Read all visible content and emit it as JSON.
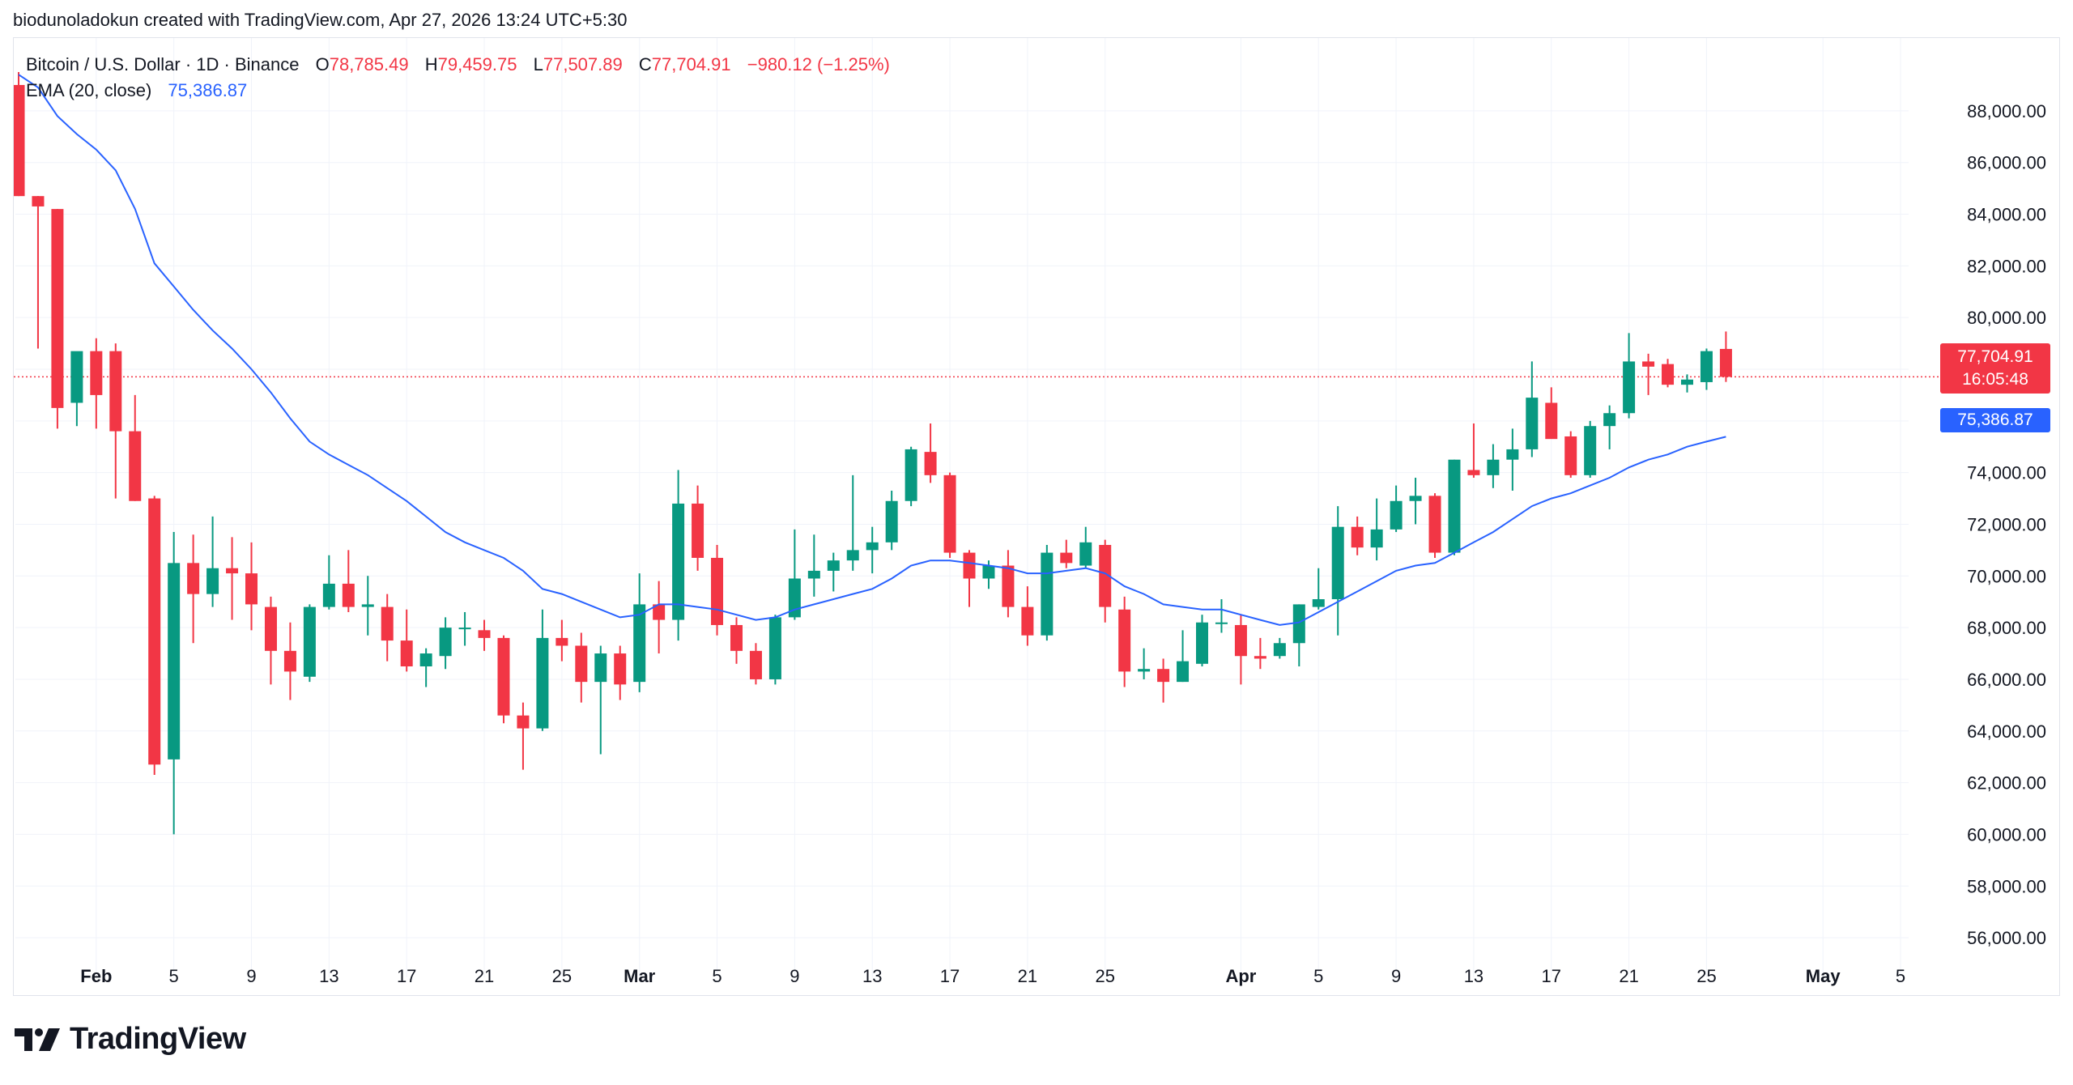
{
  "header": {
    "credit": "biodunoladokun created with TradingView.com, Apr 27, 2026 13:24 UTC+5:30"
  },
  "legend": {
    "symbol": "Bitcoin / U.S. Dollar · 1D · Binance",
    "open_label": "O",
    "open": "78,785.49",
    "high_label": "H",
    "high": "79,459.75",
    "low_label": "L",
    "low": "77,507.89",
    "close_label": "C",
    "close": "77,704.91",
    "change": "−980.12 (−1.25%)",
    "ema_label": "EMA (20, close)",
    "ema_value": "75,386.87"
  },
  "price_tags": {
    "last_price": "77,704.91",
    "countdown": "16:05:48",
    "ema": "75,386.87"
  },
  "footer": {
    "brand": "TradingView",
    "logo_icon": "tradingview-logo-icon"
  },
  "colors": {
    "up": "#089981",
    "down": "#f23645",
    "ema": "#2962ff",
    "grid": "#f0f3fa",
    "axis_text": "#131722"
  },
  "chart_data": {
    "type": "candlestick",
    "timeframe": "1D",
    "ylim": [
      55000,
      89500
    ],
    "y_ticks": [
      56000,
      58000,
      60000,
      62000,
      64000,
      66000,
      68000,
      70000,
      72000,
      74000,
      76000,
      78000,
      80000,
      82000,
      84000,
      86000,
      88000
    ],
    "y_tick_labels": [
      "56,000.00",
      "58,000.00",
      "60,000.00",
      "62,000.00",
      "64,000.00",
      "66,000.00",
      "68,000.00",
      "70,000.00",
      "72,000.00",
      "74,000.00",
      "76,000.00",
      "78,000.00",
      "80,000.00",
      "82,000.00",
      "84,000.00",
      "86,000.00",
      "88,000.00"
    ],
    "x_range": [
      "2026-01-28",
      "2026-05-06"
    ],
    "x_ticks": [
      {
        "date": "2026-02-01",
        "label": "Feb"
      },
      {
        "date": "2026-02-05",
        "label": "5"
      },
      {
        "date": "2026-02-09",
        "label": "9"
      },
      {
        "date": "2026-02-13",
        "label": "13"
      },
      {
        "date": "2026-02-17",
        "label": "17"
      },
      {
        "date": "2026-02-21",
        "label": "21"
      },
      {
        "date": "2026-02-25",
        "label": "25"
      },
      {
        "date": "2026-03-01",
        "label": "Mar"
      },
      {
        "date": "2026-03-05",
        "label": "5"
      },
      {
        "date": "2026-03-09",
        "label": "9"
      },
      {
        "date": "2026-03-13",
        "label": "13"
      },
      {
        "date": "2026-03-17",
        "label": "17"
      },
      {
        "date": "2026-03-21",
        "label": "21"
      },
      {
        "date": "2026-03-25",
        "label": "25"
      },
      {
        "date": "2026-04-01",
        "label": "Apr"
      },
      {
        "date": "2026-04-05",
        "label": "5"
      },
      {
        "date": "2026-04-09",
        "label": "9"
      },
      {
        "date": "2026-04-13",
        "label": "13"
      },
      {
        "date": "2026-04-17",
        "label": "17"
      },
      {
        "date": "2026-04-21",
        "label": "21"
      },
      {
        "date": "2026-04-25",
        "label": "25"
      },
      {
        "date": "2026-05-01",
        "label": "May"
      },
      {
        "date": "2026-05-05",
        "label": "5"
      }
    ],
    "last_price_line": 77704.91,
    "candles": [
      {
        "d": "2026-01-28",
        "o": 89000,
        "h": 89500,
        "l": 84700,
        "c": 84700
      },
      {
        "d": "2026-01-29",
        "o": 84700,
        "h": 84700,
        "l": 78800,
        "c": 84300
      },
      {
        "d": "2026-01-30",
        "o": 84200,
        "h": 84200,
        "l": 75700,
        "c": 76500
      },
      {
        "d": "2026-01-31",
        "o": 76700,
        "h": 78500,
        "l": 75800,
        "c": 78700
      },
      {
        "d": "2026-02-01",
        "o": 78700,
        "h": 79200,
        "l": 75700,
        "c": 77000
      },
      {
        "d": "2026-02-02",
        "o": 78700,
        "h": 79000,
        "l": 73000,
        "c": 75600
      },
      {
        "d": "2026-02-03",
        "o": 75600,
        "h": 77000,
        "l": 72900,
        "c": 72900
      },
      {
        "d": "2026-02-04",
        "o": 73000,
        "h": 73100,
        "l": 62300,
        "c": 62700
      },
      {
        "d": "2026-02-05",
        "o": 62900,
        "h": 71700,
        "l": 60000,
        "c": 70500
      },
      {
        "d": "2026-02-06",
        "o": 70500,
        "h": 71600,
        "l": 67400,
        "c": 69300
      },
      {
        "d": "2026-02-07",
        "o": 69300,
        "h": 72300,
        "l": 68800,
        "c": 70300
      },
      {
        "d": "2026-02-08",
        "o": 70300,
        "h": 71500,
        "l": 68300,
        "c": 70100
      },
      {
        "d": "2026-02-09",
        "o": 70100,
        "h": 71300,
        "l": 67900,
        "c": 68900
      },
      {
        "d": "2026-02-10",
        "o": 68800,
        "h": 69200,
        "l": 65800,
        "c": 67100
      },
      {
        "d": "2026-02-11",
        "o": 67100,
        "h": 68200,
        "l": 65200,
        "c": 66300
      },
      {
        "d": "2026-02-12",
        "o": 66100,
        "h": 68900,
        "l": 65900,
        "c": 68800
      },
      {
        "d": "2026-02-13",
        "o": 68800,
        "h": 70800,
        "l": 68700,
        "c": 69700
      },
      {
        "d": "2026-02-14",
        "o": 69700,
        "h": 71000,
        "l": 68600,
        "c": 68800
      },
      {
        "d": "2026-02-15",
        "o": 68800,
        "h": 70000,
        "l": 67700,
        "c": 68900
      },
      {
        "d": "2026-02-16",
        "o": 68800,
        "h": 69300,
        "l": 66700,
        "c": 67500
      },
      {
        "d": "2026-02-17",
        "o": 67500,
        "h": 68700,
        "l": 66300,
        "c": 66500
      },
      {
        "d": "2026-02-18",
        "o": 66500,
        "h": 67200,
        "l": 65700,
        "c": 67000
      },
      {
        "d": "2026-02-19",
        "o": 66900,
        "h": 68400,
        "l": 66400,
        "c": 68000
      },
      {
        "d": "2026-02-20",
        "o": 68000,
        "h": 68600,
        "l": 67300,
        "c": 68000
      },
      {
        "d": "2026-02-21",
        "o": 67900,
        "h": 68300,
        "l": 67100,
        "c": 67600
      },
      {
        "d": "2026-02-22",
        "o": 67600,
        "h": 67700,
        "l": 64300,
        "c": 64600
      },
      {
        "d": "2026-02-23",
        "o": 64600,
        "h": 65100,
        "l": 62500,
        "c": 64100
      },
      {
        "d": "2026-02-24",
        "o": 64100,
        "h": 68700,
        "l": 64000,
        "c": 67600
      },
      {
        "d": "2026-02-25",
        "o": 67600,
        "h": 68300,
        "l": 66700,
        "c": 67300
      },
      {
        "d": "2026-02-26",
        "o": 67300,
        "h": 67800,
        "l": 65100,
        "c": 65900
      },
      {
        "d": "2026-02-27",
        "o": 65900,
        "h": 67300,
        "l": 63100,
        "c": 67000
      },
      {
        "d": "2026-02-28",
        "o": 67000,
        "h": 67300,
        "l": 65200,
        "c": 65800
      },
      {
        "d": "2026-03-01",
        "o": 65900,
        "h": 70100,
        "l": 65500,
        "c": 68900
      },
      {
        "d": "2026-03-02",
        "o": 68900,
        "h": 69800,
        "l": 67000,
        "c": 68300
      },
      {
        "d": "2026-03-03",
        "o": 68300,
        "h": 74100,
        "l": 67500,
        "c": 72800
      },
      {
        "d": "2026-03-04",
        "o": 72800,
        "h": 73500,
        "l": 70200,
        "c": 70700
      },
      {
        "d": "2026-03-05",
        "o": 70700,
        "h": 71200,
        "l": 67700,
        "c": 68100
      },
      {
        "d": "2026-03-06",
        "o": 68100,
        "h": 68400,
        "l": 66600,
        "c": 67100
      },
      {
        "d": "2026-03-07",
        "o": 67100,
        "h": 67400,
        "l": 65800,
        "c": 66000
      },
      {
        "d": "2026-03-08",
        "o": 66000,
        "h": 68500,
        "l": 65800,
        "c": 68400
      },
      {
        "d": "2026-03-09",
        "o": 68400,
        "h": 71800,
        "l": 68300,
        "c": 69900
      },
      {
        "d": "2026-03-10",
        "o": 69900,
        "h": 71600,
        "l": 69200,
        "c": 70200
      },
      {
        "d": "2026-03-11",
        "o": 70200,
        "h": 70900,
        "l": 69400,
        "c": 70600
      },
      {
        "d": "2026-03-12",
        "o": 70600,
        "h": 73900,
        "l": 70200,
        "c": 71000
      },
      {
        "d": "2026-03-13",
        "o": 71000,
        "h": 71900,
        "l": 70100,
        "c": 71300
      },
      {
        "d": "2026-03-14",
        "o": 71300,
        "h": 73300,
        "l": 71000,
        "c": 72900
      },
      {
        "d": "2026-03-15",
        "o": 72900,
        "h": 75000,
        "l": 72700,
        "c": 74900
      },
      {
        "d": "2026-03-16",
        "o": 74800,
        "h": 75900,
        "l": 73600,
        "c": 73900
      },
      {
        "d": "2026-03-17",
        "o": 73900,
        "h": 74000,
        "l": 70700,
        "c": 70900
      },
      {
        "d": "2026-03-18",
        "o": 70900,
        "h": 71000,
        "l": 68800,
        "c": 69900
      },
      {
        "d": "2026-03-19",
        "o": 69900,
        "h": 70600,
        "l": 69500,
        "c": 70400
      },
      {
        "d": "2026-03-20",
        "o": 70400,
        "h": 71000,
        "l": 68400,
        "c": 68800
      },
      {
        "d": "2026-03-21",
        "o": 68800,
        "h": 69600,
        "l": 67300,
        "c": 67700
      },
      {
        "d": "2026-03-22",
        "o": 67700,
        "h": 71200,
        "l": 67500,
        "c": 70900
      },
      {
        "d": "2026-03-23",
        "o": 70900,
        "h": 71400,
        "l": 70300,
        "c": 70500
      },
      {
        "d": "2026-03-24",
        "o": 70400,
        "h": 71900,
        "l": 70300,
        "c": 71300
      },
      {
        "d": "2026-03-25",
        "o": 71200,
        "h": 71400,
        "l": 68200,
        "c": 68800
      },
      {
        "d": "2026-03-26",
        "o": 68700,
        "h": 69200,
        "l": 65700,
        "c": 66300
      },
      {
        "d": "2026-03-27",
        "o": 66300,
        "h": 67200,
        "l": 66000,
        "c": 66400
      },
      {
        "d": "2026-03-28",
        "o": 66400,
        "h": 66800,
        "l": 65100,
        "c": 65900
      },
      {
        "d": "2026-03-29",
        "o": 65900,
        "h": 67900,
        "l": 65900,
        "c": 66700
      },
      {
        "d": "2026-03-30",
        "o": 66600,
        "h": 68500,
        "l": 66500,
        "c": 68200
      },
      {
        "d": "2026-03-31",
        "o": 68200,
        "h": 69100,
        "l": 67800,
        "c": 68200
      },
      {
        "d": "2026-04-01",
        "o": 68100,
        "h": 68500,
        "l": 65800,
        "c": 66900
      },
      {
        "d": "2026-04-02",
        "o": 66900,
        "h": 67600,
        "l": 66400,
        "c": 66800
      },
      {
        "d": "2026-04-03",
        "o": 66900,
        "h": 67600,
        "l": 66800,
        "c": 67400
      },
      {
        "d": "2026-04-04",
        "o": 67400,
        "h": 68900,
        "l": 66500,
        "c": 68900
      },
      {
        "d": "2026-04-05",
        "o": 68800,
        "h": 70300,
        "l": 68700,
        "c": 69100
      },
      {
        "d": "2026-04-06",
        "o": 69100,
        "h": 72700,
        "l": 67700,
        "c": 71900
      },
      {
        "d": "2026-04-07",
        "o": 71900,
        "h": 72300,
        "l": 70800,
        "c": 71100
      },
      {
        "d": "2026-04-08",
        "o": 71100,
        "h": 73000,
        "l": 70600,
        "c": 71800
      },
      {
        "d": "2026-04-09",
        "o": 71800,
        "h": 73500,
        "l": 71700,
        "c": 72900
      },
      {
        "d": "2026-04-10",
        "o": 72900,
        "h": 73800,
        "l": 72000,
        "c": 73100
      },
      {
        "d": "2026-04-11",
        "o": 73100,
        "h": 73200,
        "l": 70700,
        "c": 70900
      },
      {
        "d": "2026-04-12",
        "o": 70900,
        "h": 74500,
        "l": 70800,
        "c": 74500
      },
      {
        "d": "2026-04-13",
        "o": 74100,
        "h": 75900,
        "l": 73800,
        "c": 73900
      },
      {
        "d": "2026-04-14",
        "o": 73900,
        "h": 75100,
        "l": 73400,
        "c": 74500
      },
      {
        "d": "2026-04-15",
        "o": 74500,
        "h": 75700,
        "l": 73300,
        "c": 74900
      },
      {
        "d": "2026-04-16",
        "o": 74900,
        "h": 78300,
        "l": 74600,
        "c": 76900
      },
      {
        "d": "2026-04-17",
        "o": 76700,
        "h": 77300,
        "l": 75400,
        "c": 75300
      },
      {
        "d": "2026-04-18",
        "o": 75400,
        "h": 75600,
        "l": 73800,
        "c": 73900
      },
      {
        "d": "2026-04-19",
        "o": 73900,
        "h": 76000,
        "l": 73800,
        "c": 75800
      },
      {
        "d": "2026-04-20",
        "o": 75800,
        "h": 76600,
        "l": 74900,
        "c": 76300
      },
      {
        "d": "2026-04-21",
        "o": 76300,
        "h": 79400,
        "l": 76100,
        "c": 78300
      },
      {
        "d": "2026-04-22",
        "o": 78300,
        "h": 78600,
        "l": 77000,
        "c": 78100
      },
      {
        "d": "2026-04-23",
        "o": 78200,
        "h": 78400,
        "l": 77300,
        "c": 77400
      },
      {
        "d": "2026-04-24",
        "o": 77400,
        "h": 77800,
        "l": 77100,
        "c": 77600
      },
      {
        "d": "2026-04-25",
        "o": 77500,
        "h": 78800,
        "l": 77200,
        "c": 78700
      },
      {
        "d": "2026-04-26",
        "o": 78785.49,
        "h": 79459.75,
        "l": 77507.89,
        "c": 77704.91
      }
    ],
    "ema": {
      "name": "EMA (20, close)",
      "points": [
        [
          "2026-01-28",
          89400
        ],
        [
          "2026-01-29",
          88900
        ],
        [
          "2026-01-30",
          87800
        ],
        [
          "2026-01-31",
          87100
        ],
        [
          "2026-02-01",
          86500
        ],
        [
          "2026-02-02",
          85700
        ],
        [
          "2026-02-03",
          84200
        ],
        [
          "2026-02-04",
          82100
        ],
        [
          "2026-02-05",
          81200
        ],
        [
          "2026-02-06",
          80300
        ],
        [
          "2026-02-07",
          79500
        ],
        [
          "2026-02-08",
          78800
        ],
        [
          "2026-02-09",
          78000
        ],
        [
          "2026-02-10",
          77100
        ],
        [
          "2026-02-11",
          76100
        ],
        [
          "2026-02-12",
          75200
        ],
        [
          "2026-02-13",
          74700
        ],
        [
          "2026-02-14",
          74300
        ],
        [
          "2026-02-15",
          73900
        ],
        [
          "2026-02-16",
          73400
        ],
        [
          "2026-02-17",
          72900
        ],
        [
          "2026-02-18",
          72300
        ],
        [
          "2026-02-19",
          71700
        ],
        [
          "2026-02-20",
          71300
        ],
        [
          "2026-02-21",
          71000
        ],
        [
          "2026-02-22",
          70700
        ],
        [
          "2026-02-23",
          70200
        ],
        [
          "2026-02-24",
          69500
        ],
        [
          "2026-02-25",
          69300
        ],
        [
          "2026-02-26",
          69000
        ],
        [
          "2026-02-27",
          68700
        ],
        [
          "2026-02-28",
          68400
        ],
        [
          "2026-03-01",
          68500
        ],
        [
          "2026-03-02",
          68900
        ],
        [
          "2026-03-03",
          68900
        ],
        [
          "2026-03-04",
          68800
        ],
        [
          "2026-03-05",
          68700
        ],
        [
          "2026-03-06",
          68500
        ],
        [
          "2026-03-07",
          68300
        ],
        [
          "2026-03-08",
          68400
        ],
        [
          "2026-03-09",
          68700
        ],
        [
          "2026-03-10",
          68900
        ],
        [
          "2026-03-11",
          69100
        ],
        [
          "2026-03-12",
          69300
        ],
        [
          "2026-03-13",
          69500
        ],
        [
          "2026-03-14",
          69900
        ],
        [
          "2026-03-15",
          70400
        ],
        [
          "2026-03-16",
          70600
        ],
        [
          "2026-03-17",
          70600
        ],
        [
          "2026-03-18",
          70500
        ],
        [
          "2026-03-19",
          70400
        ],
        [
          "2026-03-20",
          70300
        ],
        [
          "2026-03-21",
          70100
        ],
        [
          "2026-03-22",
          70100
        ],
        [
          "2026-03-23",
          70200
        ],
        [
          "2026-03-24",
          70300
        ],
        [
          "2026-03-25",
          70100
        ],
        [
          "2026-03-26",
          69600
        ],
        [
          "2026-03-27",
          69300
        ],
        [
          "2026-03-28",
          68900
        ],
        [
          "2026-03-29",
          68800
        ],
        [
          "2026-03-30",
          68700
        ],
        [
          "2026-03-31",
          68700
        ],
        [
          "2026-04-01",
          68500
        ],
        [
          "2026-04-02",
          68300
        ],
        [
          "2026-04-03",
          68100
        ],
        [
          "2026-04-04",
          68200
        ],
        [
          "2026-04-05",
          68600
        ],
        [
          "2026-04-06",
          69000
        ],
        [
          "2026-04-07",
          69400
        ],
        [
          "2026-04-08",
          69800
        ],
        [
          "2026-04-09",
          70200
        ],
        [
          "2026-04-10",
          70400
        ],
        [
          "2026-04-11",
          70500
        ],
        [
          "2026-04-12",
          70900
        ],
        [
          "2026-04-13",
          71300
        ],
        [
          "2026-04-14",
          71700
        ],
        [
          "2026-04-15",
          72200
        ],
        [
          "2026-04-16",
          72700
        ],
        [
          "2026-04-17",
          73000
        ],
        [
          "2026-04-18",
          73200
        ],
        [
          "2026-04-19",
          73500
        ],
        [
          "2026-04-20",
          73800
        ],
        [
          "2026-04-21",
          74200
        ],
        [
          "2026-04-22",
          74500
        ],
        [
          "2026-04-23",
          74700
        ],
        [
          "2026-04-24",
          75000
        ],
        [
          "2026-04-25",
          75200
        ],
        [
          "2026-04-26",
          75386.87
        ]
      ]
    }
  }
}
